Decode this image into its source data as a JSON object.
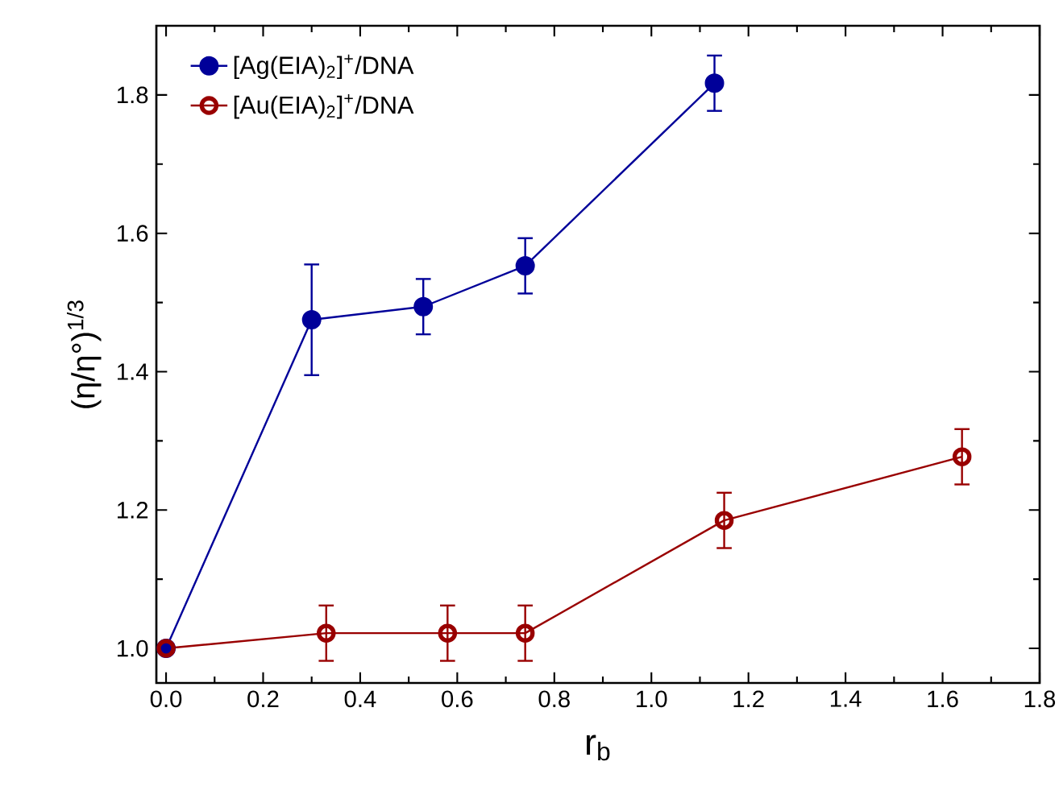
{
  "chart_data": {
    "type": "line",
    "xlabel": "r$_{b}$",
    "ylabel": "(η/η°)$^{1/3}$",
    "xlim": [
      -0.02,
      1.8
    ],
    "ylim": [
      0.95,
      1.9
    ],
    "xticks": [
      {
        "value": 0,
        "label": "0.0"
      },
      0.2,
      0.4,
      0.6,
      0.8,
      {
        "value": 1,
        "label": "1.0"
      },
      1.2,
      1.4,
      1.6,
      1.8
    ],
    "yticks": [
      {
        "value": 1,
        "label": "1.0"
      },
      1.2,
      1.4,
      1.6,
      1.8
    ],
    "grid": false,
    "legend": "top left",
    "marker": "circle",
    "line_style": "solid",
    "series": [
      {
        "name": "[Ag(EIA)$_{2}$]$^{+}$/DNA",
        "color": "#000099",
        "x": [
          0,
          0.3,
          0.53,
          0.74,
          1.13
        ],
        "values": [
          1.0,
          1.475,
          1.494,
          1.553,
          1.817
        ],
        "errors": [
          null,
          0.08,
          0.04,
          0.04,
          0.04
        ]
      },
      {
        "name": "[Au(EIA)$_{2}$]$^{+}$/DNA",
        "color": "#990000",
        "x": [
          0,
          0.33,
          0.58,
          0.74,
          1.15,
          1.64
        ],
        "values": [
          1.0,
          1.022,
          1.022,
          1.022,
          1.185,
          1.277
        ],
        "errors": [
          null,
          0.04,
          0.04,
          0.04,
          0.04,
          0.04
        ]
      }
    ]
  }
}
